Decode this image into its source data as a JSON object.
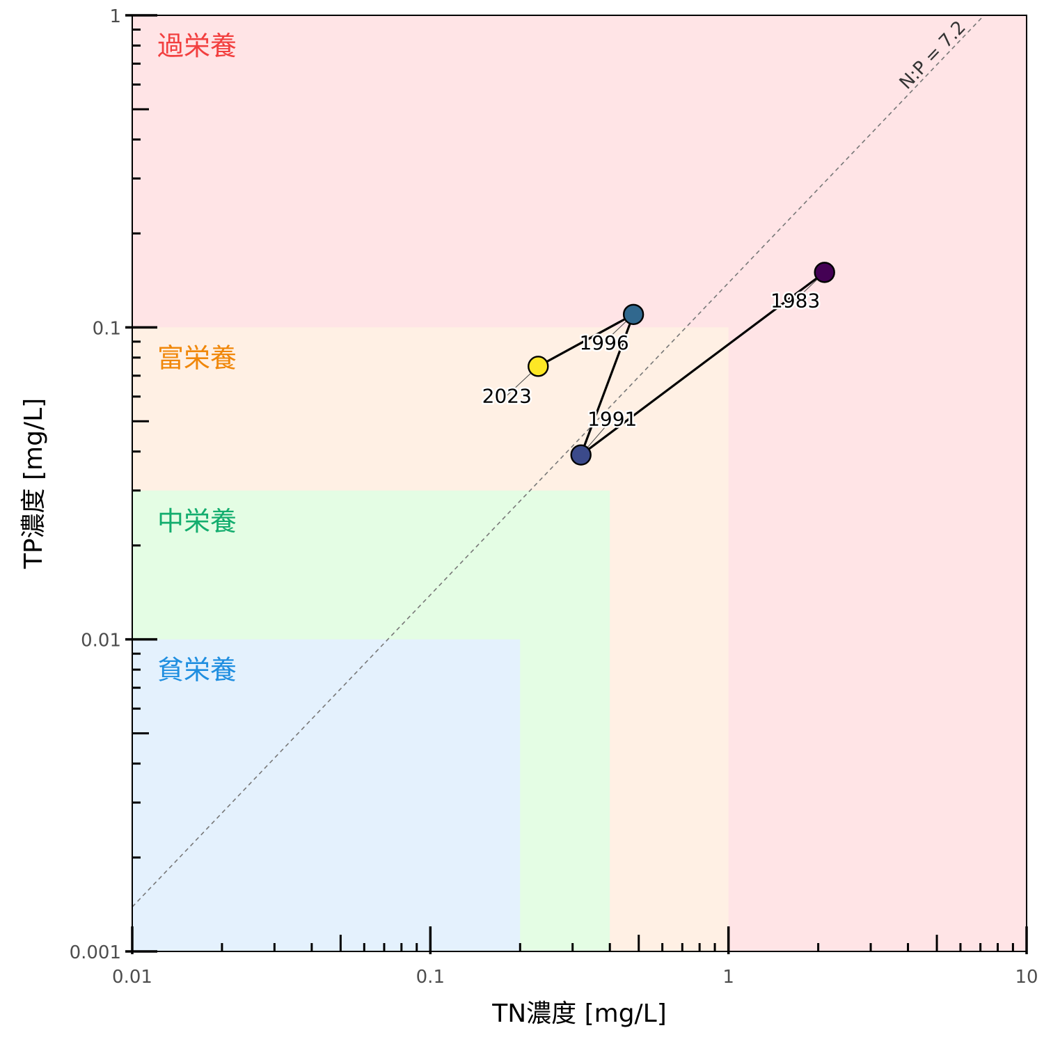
{
  "chart_data": {
    "type": "scatter",
    "xlabel": "TN濃度 [mg/L]",
    "ylabel": "TP濃度 [mg/L]",
    "x_scale": "log",
    "y_scale": "log",
    "xlim": [
      0.01,
      10
    ],
    "ylim": [
      0.001,
      1
    ],
    "x_ticks": [
      {
        "value": 0.01,
        "label": "0.01"
      },
      {
        "value": 0.1,
        "label": "0.1"
      },
      {
        "value": 1,
        "label": "1"
      },
      {
        "value": 10,
        "label": "10"
      }
    ],
    "y_ticks": [
      {
        "value": 0.001,
        "label": "0.001"
      },
      {
        "value": 0.01,
        "label": "0.01"
      },
      {
        "value": 0.1,
        "label": "0.1"
      },
      {
        "value": 1,
        "label": "1"
      }
    ],
    "grid": false,
    "zones": [
      {
        "label": "過栄養",
        "tn_max": 10,
        "tp_max": 1,
        "fill": "#ffe4e6",
        "text_color": "#f23f3f"
      },
      {
        "label": "富栄養",
        "tn_max": 1,
        "tp_max": 0.1,
        "fill": "#fff0e4",
        "text_color": "#f0870a"
      },
      {
        "label": "中栄養",
        "tn_max": 0.4,
        "tp_max": 0.03,
        "fill": "#e4fde4",
        "text_color": "#13ad6e"
      },
      {
        "label": "貧栄養",
        "tn_max": 0.2,
        "tp_max": 0.01,
        "fill": "#e4f1fd",
        "text_color": "#1f8ee0"
      }
    ],
    "reference_line": {
      "label": "N:P = 7.2",
      "ratio": 7.2,
      "color": "#777777"
    },
    "points": [
      {
        "year": "1983",
        "tn": 2.1,
        "tp": 0.15,
        "color": "#440154"
      },
      {
        "year": "1991",
        "tn": 0.32,
        "tp": 0.039,
        "color": "#3b4a8a"
      },
      {
        "year": "1996",
        "tn": 0.48,
        "tp": 0.11,
        "color": "#31688e"
      },
      {
        "year": "2023",
        "tn": 0.23,
        "tp": 0.075,
        "color": "#fde725"
      }
    ]
  }
}
